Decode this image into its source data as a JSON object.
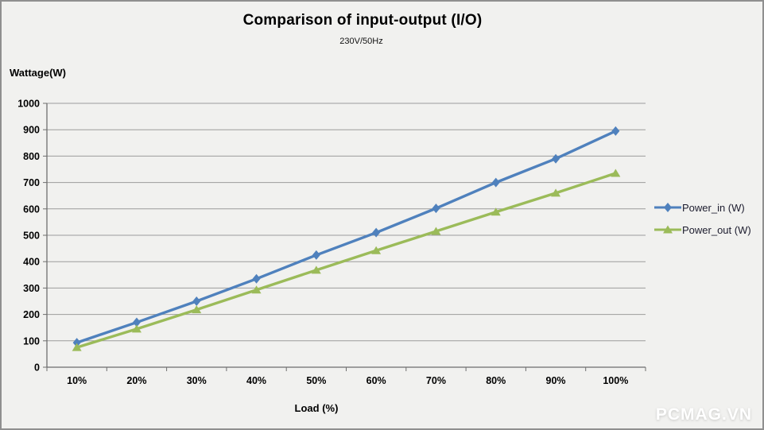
{
  "watermark": "PCMAG.VN",
  "colors": {
    "background": "#F1F1EF",
    "border": "#8F8F8F",
    "gridline": "#9C9C9C",
    "axis": "#6E6E6E",
    "power_in": "#4F81BD",
    "power_out": "#9BBB59",
    "watermark_text": "#FFFFFF"
  },
  "chart_data": {
    "type": "line",
    "title": "Comparison of input-output (I/O)",
    "subtitle": "230V/50Hz",
    "xlabel": "Load (%)",
    "ylabel": "Wattage(W)",
    "categories": [
      "10%",
      "20%",
      "30%",
      "40%",
      "50%",
      "60%",
      "70%",
      "80%",
      "90%",
      "100%"
    ],
    "series": [
      {
        "name": "Power_in (W)",
        "color": "#4F81BD",
        "marker": "diamond",
        "values": [
          93,
          170,
          250,
          335,
          425,
          510,
          602,
          700,
          790,
          895
        ]
      },
      {
        "name": "Power_out (W)",
        "color": "#9BBB59",
        "marker": "triangle",
        "values": [
          75,
          145,
          218,
          293,
          368,
          442,
          515,
          588,
          660,
          735
        ]
      }
    ],
    "ylim": [
      0,
      1000
    ],
    "ytick_step": 100,
    "grid": true,
    "legend_position": "right"
  }
}
